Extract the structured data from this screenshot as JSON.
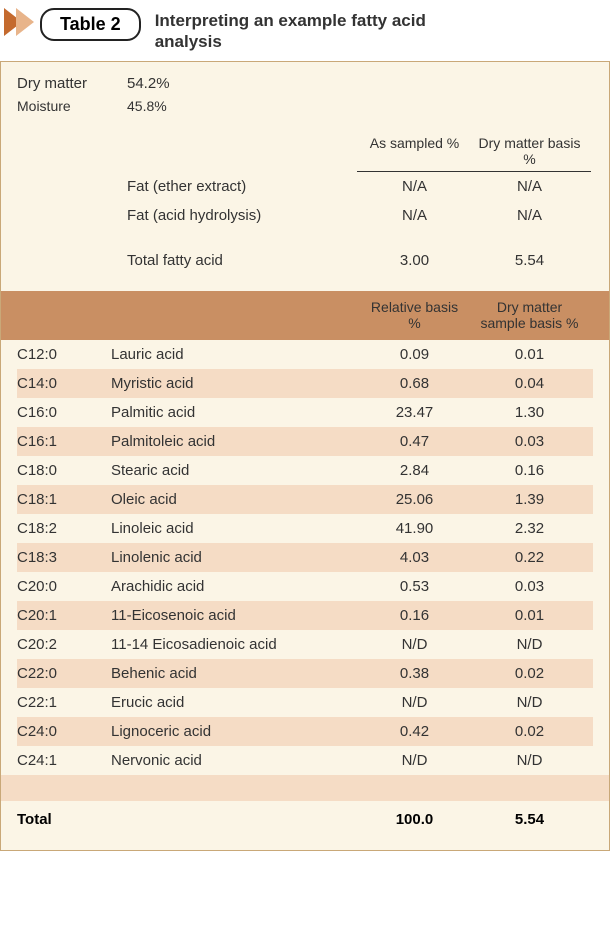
{
  "header": {
    "badge": "Table 2",
    "caption_line1": "Interpreting an example fatty acid",
    "caption_line2": "analysis"
  },
  "summary": {
    "dry_matter_label": "Dry matter",
    "dry_matter_value": "54.2%",
    "moisture_label": "Moisture",
    "moisture_value": "45.8%"
  },
  "colheads1": {
    "col1": "As sampled %",
    "col2": "Dry matter basis %"
  },
  "fat_rows": [
    {
      "name": "Fat (ether extract)",
      "v1": "N/A",
      "v2": "N/A"
    },
    {
      "name": "Fat (acid hydrolysis)",
      "v1": "N/A",
      "v2": "N/A"
    }
  ],
  "tfa": {
    "name": "Total fatty acid",
    "v1": "3.00",
    "v2": "5.54"
  },
  "colheads2": {
    "col1": "Relative basis %",
    "col2": "Dry matter sample basis %"
  },
  "fatty_acids": [
    {
      "code": "C12:0",
      "name": "Lauric acid",
      "v1": "0.09",
      "v2": "0.01"
    },
    {
      "code": "C14:0",
      "name": "Myristic acid",
      "v1": "0.68",
      "v2": "0.04"
    },
    {
      "code": "C16:0",
      "name": "Palmitic acid",
      "v1": "23.47",
      "v2": "1.30"
    },
    {
      "code": "C16:1",
      "name": "Palmitoleic acid",
      "v1": "0.47",
      "v2": "0.03"
    },
    {
      "code": "C18:0",
      "name": "Stearic acid",
      "v1": "2.84",
      "v2": "0.16"
    },
    {
      "code": "C18:1",
      "name": "Oleic acid",
      "v1": "25.06",
      "v2": "1.39"
    },
    {
      "code": "C18:2",
      "name": "Linoleic acid",
      "v1": "41.90",
      "v2": "2.32"
    },
    {
      "code": "C18:3",
      "name": "Linolenic acid",
      "v1": "4.03",
      "v2": "0.22"
    },
    {
      "code": "C20:0",
      "name": "Arachidic acid",
      "v1": "0.53",
      "v2": "0.03"
    },
    {
      "code": "C20:1",
      "name": "11-Eicosenoic acid",
      "v1": "0.16",
      "v2": "0.01"
    },
    {
      "code": "C20:2",
      "name": "11-14 Eicosadienoic acid",
      "v1": "N/D",
      "v2": "N/D"
    },
    {
      "code": "C22:0",
      "name": "Behenic acid",
      "v1": "0.38",
      "v2": "0.02"
    },
    {
      "code": "C22:1",
      "name": "Erucic acid",
      "v1": "N/D",
      "v2": "N/D"
    },
    {
      "code": "C24:0",
      "name": "Lignoceric acid",
      "v1": "0.42",
      "v2": "0.02"
    },
    {
      "code": "C24:1",
      "name": "Nervonic acid",
      "v1": "N/D",
      "v2": "N/D"
    }
  ],
  "total": {
    "label": "Total",
    "v1": "100.0",
    "v2": "5.54"
  },
  "colors": {
    "bg": "#fbf5e6",
    "stripe": "#f5dcc5",
    "section_head": "#c98f63",
    "border": "#c9a878",
    "chev_dark": "#c46a2e",
    "chev_light": "#e8b48a"
  }
}
